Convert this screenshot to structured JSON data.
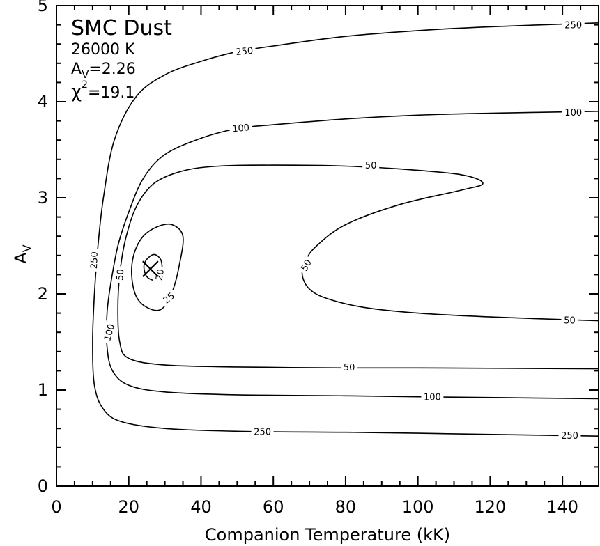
{
  "chart_data": {
    "type": "contour",
    "xlabel": "Companion Temperature (kK)",
    "ylabel_main": "A",
    "ylabel_sub": "V",
    "xlim": [
      0,
      150
    ],
    "ylim": [
      0,
      5
    ],
    "x_ticks": [
      "0",
      "20",
      "40",
      "60",
      "80",
      "100",
      "120",
      "140"
    ],
    "y_ticks": [
      "0",
      "1",
      "2",
      "3",
      "4",
      "5"
    ],
    "annotations": {
      "title": "SMC Dust",
      "temperature": "26000 K",
      "av_prefix": "A",
      "av_sub": "V",
      "av_value": "=2.26",
      "chi_symbol": "χ",
      "chi_sup": "2",
      "chi_value": "=19.1"
    },
    "best_fit": {
      "x": 26,
      "y": 2.26,
      "marker": "x"
    },
    "contours": [
      {
        "level": "250",
        "points": [
          [
            150,
            4.82
          ],
          [
            120,
            4.78
          ],
          [
            100,
            4.74
          ],
          [
            80,
            4.68
          ],
          [
            60,
            4.58
          ],
          [
            50,
            4.52
          ],
          [
            40,
            4.42
          ],
          [
            30,
            4.28
          ],
          [
            22,
            4.05
          ],
          [
            16,
            3.6
          ],
          [
            13,
            3.0
          ],
          [
            11.5,
            2.5
          ],
          [
            10.5,
            2.0
          ],
          [
            10,
            1.5
          ],
          [
            10.5,
            1.05
          ],
          [
            13,
            0.8
          ],
          [
            18,
            0.67
          ],
          [
            30,
            0.6
          ],
          [
            50,
            0.57
          ],
          [
            80,
            0.56
          ],
          [
            100,
            0.55
          ],
          [
            150,
            0.52
          ]
        ],
        "labels": [
          {
            "text": "250",
            "x": 52,
            "y": 4.53,
            "angle": -6
          },
          {
            "text": "250",
            "x": 143,
            "y": 4.8,
            "angle": 0
          },
          {
            "text": "250",
            "x": 10.3,
            "y": 2.35,
            "angle": -88
          },
          {
            "text": "250",
            "x": 57,
            "y": 0.57,
            "angle": 0
          },
          {
            "text": "250",
            "x": 142,
            "y": 0.53,
            "angle": 0
          }
        ]
      },
      {
        "level": "100",
        "points": [
          [
            150,
            3.9
          ],
          [
            120,
            3.88
          ],
          [
            100,
            3.86
          ],
          [
            80,
            3.82
          ],
          [
            60,
            3.76
          ],
          [
            50,
            3.72
          ],
          [
            40,
            3.62
          ],
          [
            30,
            3.45
          ],
          [
            24,
            3.2
          ],
          [
            20,
            2.85
          ],
          [
            17,
            2.5
          ],
          [
            15,
            2.1
          ],
          [
            14,
            1.8
          ],
          [
            14,
            1.45
          ],
          [
            15.5,
            1.2
          ],
          [
            20,
            1.05
          ],
          [
            30,
            0.98
          ],
          [
            50,
            0.95
          ],
          [
            80,
            0.94
          ],
          [
            100,
            0.93
          ],
          [
            150,
            0.91
          ]
        ],
        "labels": [
          {
            "text": "100",
            "x": 51,
            "y": 3.73,
            "angle": -5
          },
          {
            "text": "100",
            "x": 143,
            "y": 3.89,
            "angle": 0
          },
          {
            "text": "100",
            "x": 14.5,
            "y": 1.6,
            "angle": -75
          },
          {
            "text": "100",
            "x": 104,
            "y": 0.93,
            "angle": 0
          }
        ]
      },
      {
        "level": "50",
        "points": [
          [
            150,
            1.72
          ],
          [
            120,
            1.76
          ],
          [
            100,
            1.8
          ],
          [
            85,
            1.86
          ],
          [
            75,
            1.95
          ],
          [
            70,
            2.05
          ],
          [
            68,
            2.2
          ],
          [
            69,
            2.35
          ],
          [
            72,
            2.5
          ],
          [
            80,
            2.72
          ],
          [
            95,
            2.93
          ],
          [
            112,
            3.08
          ],
          [
            118,
            3.15
          ],
          [
            112,
            3.24
          ],
          [
            95,
            3.3
          ],
          [
            80,
            3.33
          ],
          [
            60,
            3.34
          ],
          [
            45,
            3.33
          ],
          [
            35,
            3.28
          ],
          [
            27,
            3.15
          ],
          [
            22,
            2.9
          ],
          [
            19,
            2.55
          ],
          [
            17.5,
            2.2
          ],
          [
            17,
            1.85
          ],
          [
            17.5,
            1.5
          ],
          [
            20,
            1.33
          ],
          [
            30,
            1.26
          ],
          [
            50,
            1.24
          ],
          [
            80,
            1.23
          ],
          [
            100,
            1.23
          ],
          [
            150,
            1.22
          ]
        ],
        "labels": [
          {
            "text": "50",
            "x": 87,
            "y": 3.34,
            "angle": 0
          },
          {
            "text": "50",
            "x": 142,
            "y": 1.73,
            "angle": 0
          },
          {
            "text": "50",
            "x": 69,
            "y": 2.3,
            "angle": -60
          },
          {
            "text": "50",
            "x": 17.5,
            "y": 2.2,
            "angle": -85
          },
          {
            "text": "50",
            "x": 81,
            "y": 1.24,
            "angle": 0
          }
        ]
      },
      {
        "level": "25",
        "points": [
          [
            29,
            1.84
          ],
          [
            25,
            1.86
          ],
          [
            22,
            1.98
          ],
          [
            20.8,
            2.2
          ],
          [
            21.5,
            2.42
          ],
          [
            24,
            2.6
          ],
          [
            28,
            2.7
          ],
          [
            32,
            2.72
          ],
          [
            35,
            2.6
          ],
          [
            34,
            2.3
          ],
          [
            32,
            2.02
          ],
          [
            29,
            1.84
          ]
        ],
        "labels": [
          {
            "text": "25",
            "x": 31,
            "y": 1.96,
            "angle": -40
          }
        ]
      },
      {
        "level": "20",
        "points": [
          [
            27,
            2.14
          ],
          [
            25,
            2.18
          ],
          [
            24.2,
            2.28
          ],
          [
            25,
            2.36
          ],
          [
            27,
            2.41
          ],
          [
            28.8,
            2.36
          ],
          [
            29.2,
            2.25
          ],
          [
            28.5,
            2.16
          ],
          [
            27,
            2.14
          ]
        ],
        "labels": [
          {
            "text": "20",
            "x": 28.5,
            "y": 2.2,
            "angle": -80
          }
        ]
      }
    ]
  }
}
